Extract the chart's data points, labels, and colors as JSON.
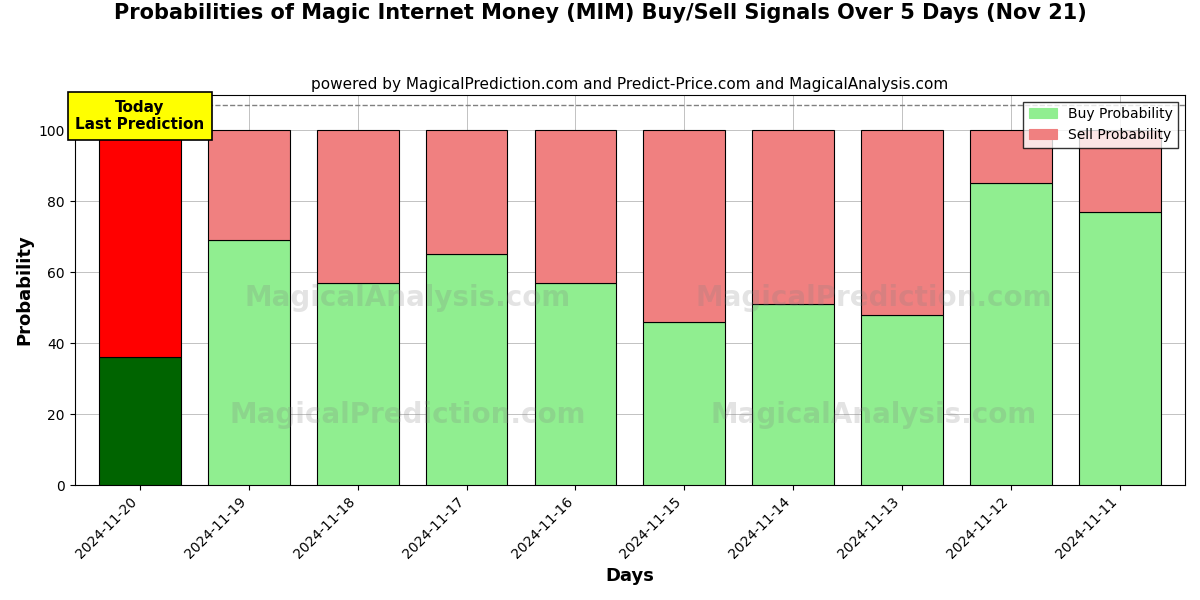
{
  "title": "Probabilities of Magic Internet Money (MIM) Buy/Sell Signals Over 5 Days (Nov 21)",
  "subtitle": "powered by MagicalPrediction.com and Predict-Price.com and MagicalAnalysis.com",
  "xlabel": "Days",
  "ylabel": "Probability",
  "categories": [
    "2024-11-20",
    "2024-11-19",
    "2024-11-18",
    "2024-11-17",
    "2024-11-16",
    "2024-11-15",
    "2024-11-14",
    "2024-11-13",
    "2024-11-12",
    "2024-11-11"
  ],
  "buy_values": [
    36,
    69,
    57,
    65,
    57,
    46,
    51,
    48,
    85,
    77
  ],
  "sell_values": [
    64,
    31,
    43,
    35,
    43,
    54,
    49,
    52,
    15,
    23
  ],
  "today_index": 0,
  "today_buy_color": "#006400",
  "today_sell_color": "#ff0000",
  "buy_color": "#90EE90",
  "sell_color": "#F08080",
  "bar_edge_color": "#000000",
  "ylim": [
    0,
    110
  ],
  "yticks": [
    0,
    20,
    40,
    60,
    80,
    100
  ],
  "dashed_line_y": 107,
  "watermark_left_top": "MagicalAnalysis.com",
  "watermark_left_bot": "MagicalPrediction.com",
  "watermark_right_top": "MagicalPrediction.com",
  "watermark_right_bot": "MagicalAnalysis.com",
  "today_label": "Today\nLast Prediction",
  "legend_buy": "Buy Probability",
  "legend_sell": "Sell Probability",
  "background_color": "#ffffff",
  "grid_color": "#aaaaaa",
  "title_fontsize": 15,
  "subtitle_fontsize": 11,
  "axis_label_fontsize": 13,
  "tick_fontsize": 10,
  "bar_width": 0.75
}
